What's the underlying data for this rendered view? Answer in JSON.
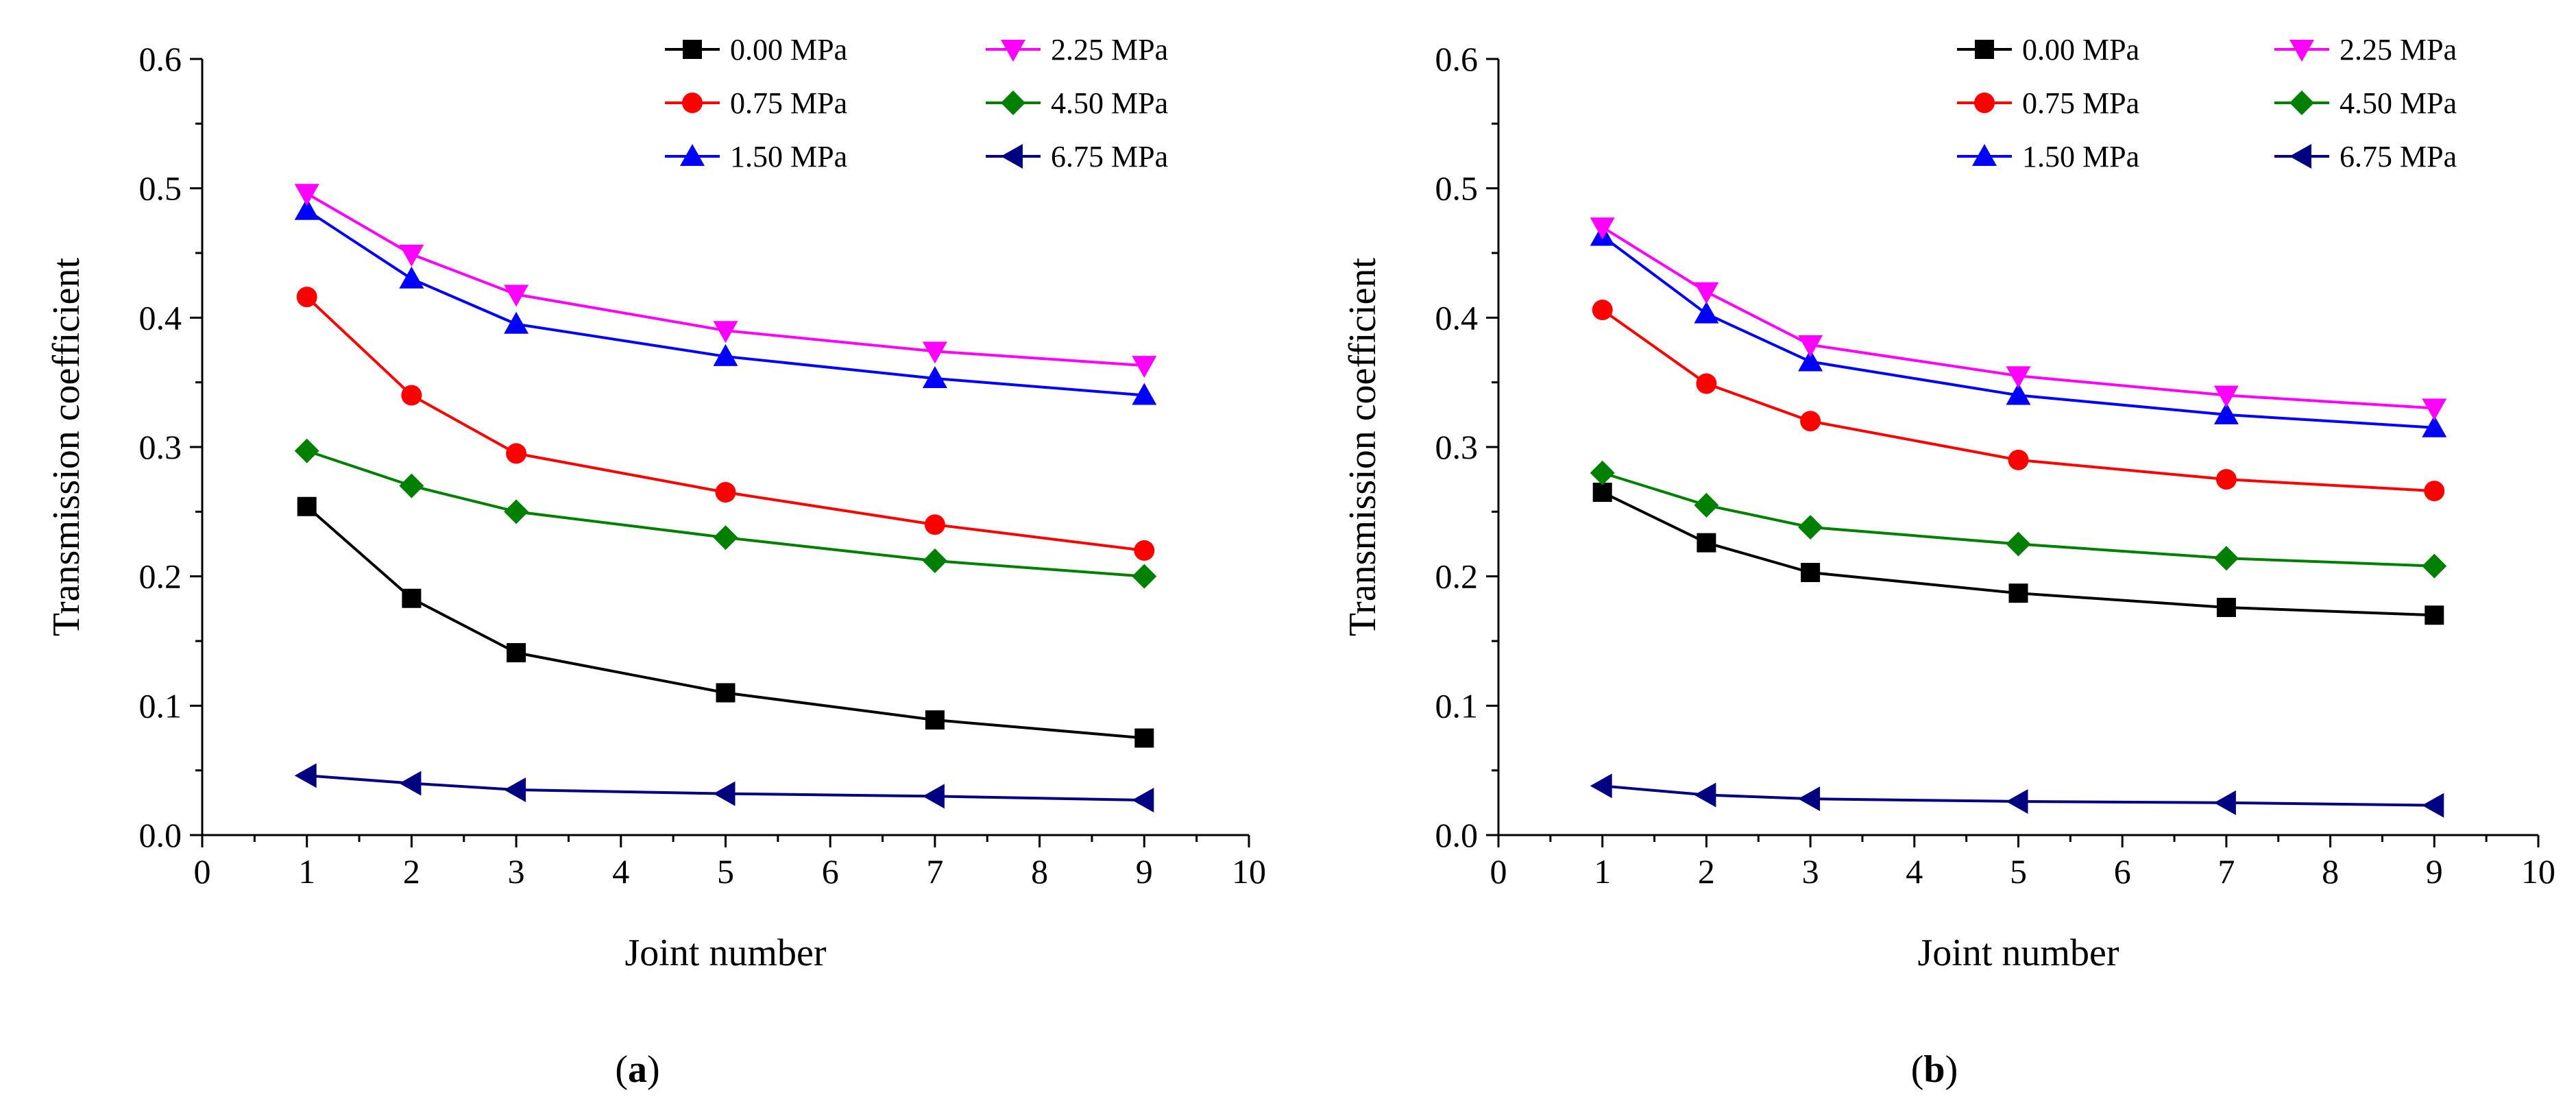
{
  "chart_data": [
    {
      "type": "line",
      "panel_label": "a",
      "xlabel": "Joint number",
      "ylabel": "Transmission coefficient",
      "xlim": [
        0,
        10
      ],
      "ylim": [
        0,
        0.6
      ],
      "xticks": [
        "0",
        "1",
        "2",
        "3",
        "4",
        "5",
        "6",
        "7",
        "8",
        "9",
        "10"
      ],
      "yticks": [
        "0.0",
        "0.1",
        "0.2",
        "0.3",
        "0.4",
        "0.5",
        "0.6"
      ],
      "legend_position": "top-right",
      "x": [
        1,
        2,
        3,
        5,
        7,
        9
      ],
      "series": [
        {
          "name": "0.00 MPa",
          "color": "#000000",
          "marker": "square",
          "values": [
            0.254,
            0.183,
            0.141,
            0.11,
            0.089,
            0.075
          ]
        },
        {
          "name": "0.75 MPa",
          "color": "#ff0000",
          "marker": "circle",
          "values": [
            0.416,
            0.34,
            0.295,
            0.265,
            0.24,
            0.22
          ]
        },
        {
          "name": "1.50 MPa",
          "color": "#0000ff",
          "marker": "triangle-up",
          "values": [
            0.483,
            0.43,
            0.395,
            0.37,
            0.353,
            0.34
          ]
        },
        {
          "name": "2.25 MPa",
          "color": "#ff00ff",
          "marker": "triangle-down",
          "values": [
            0.496,
            0.449,
            0.418,
            0.39,
            0.374,
            0.363
          ]
        },
        {
          "name": "4.50 MPa",
          "color": "#008000",
          "marker": "diamond",
          "values": [
            0.297,
            0.27,
            0.25,
            0.23,
            0.212,
            0.2
          ]
        },
        {
          "name": "6.75 MPa",
          "color": "#000080",
          "marker": "triangle-left",
          "values": [
            0.046,
            0.04,
            0.035,
            0.032,
            0.03,
            0.027
          ]
        }
      ]
    },
    {
      "type": "line",
      "panel_label": "b",
      "xlabel": "Joint number",
      "ylabel": "Transmission coefficient",
      "xlim": [
        0,
        10
      ],
      "ylim": [
        0,
        0.6
      ],
      "xticks": [
        "0",
        "1",
        "2",
        "3",
        "4",
        "5",
        "6",
        "7",
        "8",
        "9",
        "10"
      ],
      "yticks": [
        "0.0",
        "0.1",
        "0.2",
        "0.3",
        "0.4",
        "0.5",
        "0.6"
      ],
      "legend_position": "top-right",
      "x": [
        1,
        2,
        3,
        5,
        7,
        9
      ],
      "series": [
        {
          "name": "0.00 MPa",
          "color": "#000000",
          "marker": "square",
          "values": [
            0.265,
            0.226,
            0.203,
            0.187,
            0.176,
            0.17
          ]
        },
        {
          "name": "0.75 MPa",
          "color": "#ff0000",
          "marker": "circle",
          "values": [
            0.406,
            0.349,
            0.32,
            0.29,
            0.275,
            0.266
          ]
        },
        {
          "name": "1.50 MPa",
          "color": "#0000ff",
          "marker": "triangle-up",
          "values": [
            0.463,
            0.403,
            0.366,
            0.34,
            0.325,
            0.315
          ]
        },
        {
          "name": "2.25 MPa",
          "color": "#ff00ff",
          "marker": "triangle-down",
          "values": [
            0.47,
            0.42,
            0.379,
            0.355,
            0.34,
            0.33
          ]
        },
        {
          "name": "4.50 MPa",
          "color": "#008000",
          "marker": "diamond",
          "values": [
            0.28,
            0.255,
            0.238,
            0.225,
            0.214,
            0.208
          ]
        },
        {
          "name": "6.75 MPa",
          "color": "#000080",
          "marker": "triangle-left",
          "values": [
            0.038,
            0.031,
            0.028,
            0.026,
            0.025,
            0.023
          ]
        }
      ]
    }
  ]
}
